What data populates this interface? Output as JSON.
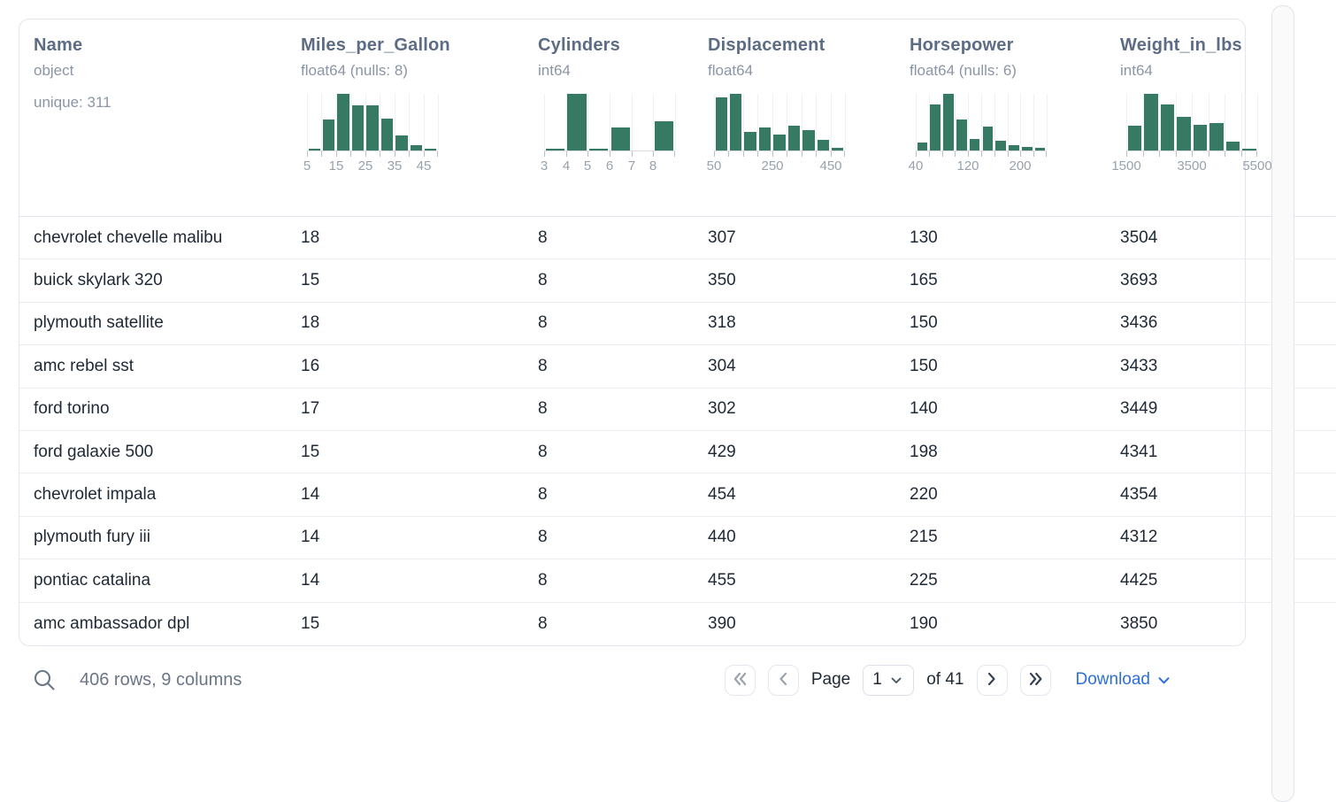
{
  "table": {
    "columns": [
      {
        "name": "Name",
        "type": "object",
        "meta": "unique: 311"
      },
      {
        "name": "Miles_per_Gallon",
        "type": "float64 (nulls: 8)",
        "histogram": {
          "bars": [
            3,
            55,
            100,
            79,
            79,
            57,
            27,
            9,
            3
          ],
          "tick_labels": [
            [
              0,
              "5"
            ],
            [
              2,
              "15"
            ],
            [
              4,
              "25"
            ],
            [
              6,
              "35"
            ],
            [
              8,
              "45"
            ]
          ]
        }
      },
      {
        "name": "Cylinders",
        "type": "int64",
        "histogram": {
          "bars": [
            3,
            100,
            2,
            40,
            0,
            52
          ],
          "tick_labels": [
            [
              0,
              "3"
            ],
            [
              1,
              "4"
            ],
            [
              2,
              "5"
            ],
            [
              3,
              "6"
            ],
            [
              4,
              "7"
            ],
            [
              5,
              "8"
            ]
          ]
        }
      },
      {
        "name": "Displacement",
        "type": "float64",
        "histogram": {
          "bars": [
            93,
            100,
            33,
            40,
            28,
            43,
            36,
            18,
            5
          ],
          "tick_labels": [
            [
              0,
              "50"
            ],
            [
              4,
              "250"
            ],
            [
              8,
              "450"
            ]
          ]
        }
      },
      {
        "name": "Horsepower",
        "type": "float64 (nulls: 6)",
        "histogram": {
          "bars": [
            14,
            82,
            100,
            55,
            20,
            42,
            17,
            9,
            6,
            5
          ],
          "tick_labels": [
            [
              0,
              "40"
            ],
            [
              4,
              "120"
            ],
            [
              8,
              "200"
            ]
          ]
        }
      },
      {
        "name": "Weight_in_lbs",
        "type": "int64",
        "histogram": {
          "bars": [
            43,
            100,
            82,
            60,
            45,
            48,
            16,
            3
          ],
          "tick_labels": [
            [
              0,
              "1500"
            ],
            [
              4,
              "3500"
            ],
            [
              8,
              "5500"
            ]
          ]
        }
      }
    ],
    "rows": [
      [
        "chevrolet chevelle malibu",
        "18",
        "8",
        "307",
        "130",
        "3504"
      ],
      [
        "buick skylark 320",
        "15",
        "8",
        "350",
        "165",
        "3693"
      ],
      [
        "plymouth satellite",
        "18",
        "8",
        "318",
        "150",
        "3436"
      ],
      [
        "amc rebel sst",
        "16",
        "8",
        "304",
        "150",
        "3433"
      ],
      [
        "ford torino",
        "17",
        "8",
        "302",
        "140",
        "3449"
      ],
      [
        "ford galaxie 500",
        "15",
        "8",
        "429",
        "198",
        "4341"
      ],
      [
        "chevrolet impala",
        "14",
        "8",
        "454",
        "220",
        "4354"
      ],
      [
        "plymouth fury iii",
        "14",
        "8",
        "440",
        "215",
        "4312"
      ],
      [
        "pontiac catalina",
        "14",
        "8",
        "455",
        "225",
        "4425"
      ],
      [
        "amc ambassador dpl",
        "15",
        "8",
        "390",
        "190",
        "3850"
      ]
    ]
  },
  "footer": {
    "summary": "406 rows, 9 columns",
    "pagination": {
      "page_label": "Page",
      "page_value": "1",
      "total_label": "of 41"
    },
    "download_label": "Download"
  },
  "colors": {
    "histogram_bar": "#377a63",
    "download_link": "#2d6fd9"
  }
}
